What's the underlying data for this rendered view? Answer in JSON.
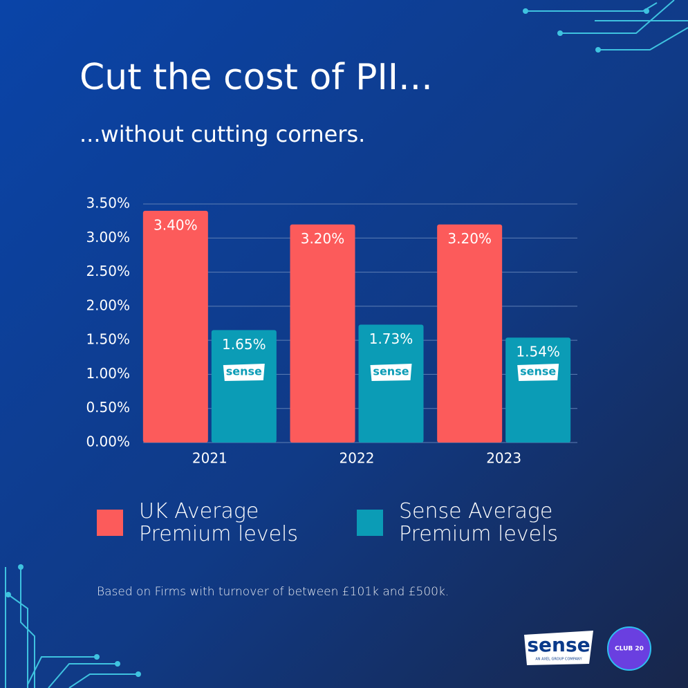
{
  "chart_data": {
    "type": "bar",
    "title": "Cut the cost of PII...",
    "subtitle": "...without cutting corners.",
    "categories": [
      "2021",
      "2022",
      "2023"
    ],
    "series": [
      {
        "name": "UK Average Premium levels",
        "color": "#fc5b5b",
        "values": [
          3.4,
          3.2,
          3.2
        ],
        "value_labels": [
          "3.40%",
          "3.20%",
          "3.20%"
        ]
      },
      {
        "name": "Sense Average Premium levels",
        "color": "#0b9cb6",
        "values": [
          1.65,
          1.73,
          1.54
        ],
        "value_labels": [
          "1.65%",
          "1.73%",
          "1.54%"
        ]
      }
    ],
    "ylim": [
      0,
      3.5
    ],
    "yticks": [
      {
        "value": 0,
        "label": "0.00%"
      },
      {
        "value": 0.5,
        "label": "0.50%"
      },
      {
        "value": 1,
        "label": "1.00%"
      },
      {
        "value": 1.5,
        "label": "1.50%"
      },
      {
        "value": 2,
        "label": "2.00%"
      },
      {
        "value": 2.5,
        "label": "2.50%"
      },
      {
        "value": 3,
        "label": "3.00%"
      },
      {
        "value": 3.5,
        "label": "3.50%"
      }
    ],
    "grid": true,
    "legend": "bottom",
    "bar_logo": "sense",
    "note": "Based on Firms with turnover of between £101k and £500k.",
    "footer_logos": {
      "brand": "sense",
      "tagline": "AN AXEL GROUP COMPANY",
      "badge": "CLUB 20"
    }
  }
}
